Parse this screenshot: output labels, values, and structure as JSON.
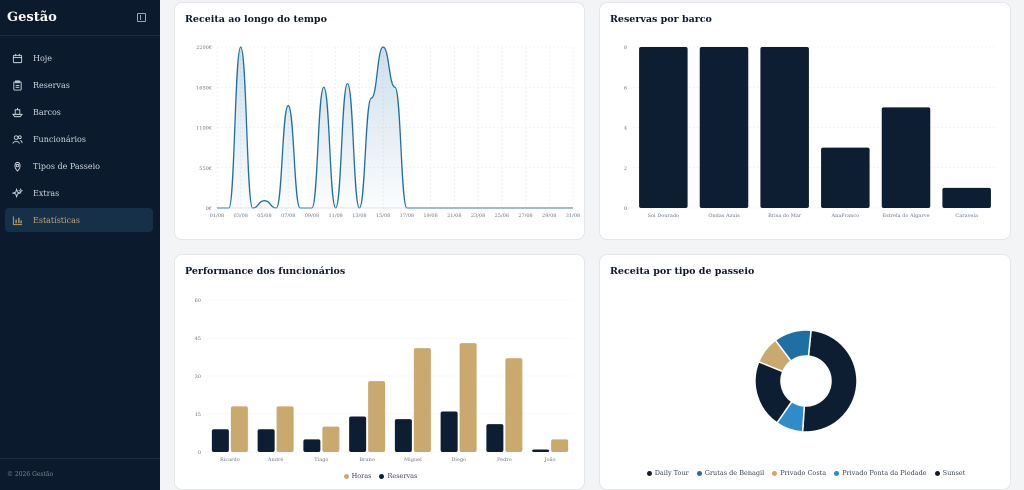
{
  "sidebar": {
    "title": "Gestão",
    "items": [
      {
        "label": "Hoje",
        "icon": "calendar-icon",
        "active": false
      },
      {
        "label": "Reservas",
        "icon": "clipboard-icon",
        "active": false
      },
      {
        "label": "Barcos",
        "icon": "boat-icon",
        "active": false
      },
      {
        "label": "Funcionários",
        "icon": "users-icon",
        "active": false
      },
      {
        "label": "Tipos de Passeio",
        "icon": "map-pin-icon",
        "active": false
      },
      {
        "label": "Extras",
        "icon": "sparkles-icon",
        "active": false
      },
      {
        "label": "Estatísticas",
        "icon": "bar-chart-icon",
        "active": true
      }
    ],
    "footer": "© 2026 Gestão"
  },
  "colors": {
    "navy": "#0e1e32",
    "gold": "#c9a96e",
    "blue": "#1f6fa5",
    "light_blue": "#2f8bc9",
    "tan": "#c9a96e"
  },
  "chart_data": [
    {
      "type": "area",
      "title": "Receita ao longo do tempo",
      "x": [
        "01/08",
        "02/08",
        "03/08",
        "04/08",
        "05/08",
        "06/08",
        "07/08",
        "08/08",
        "09/08",
        "10/08",
        "11/08",
        "12/08",
        "13/08",
        "14/08",
        "15/08",
        "16/08",
        "17/08",
        "18/08",
        "19/08",
        "20/08",
        "21/08",
        "22/08",
        "23/08",
        "24/08",
        "25/08",
        "26/08",
        "27/08",
        "28/08",
        "29/08",
        "30/08",
        "31/08"
      ],
      "values": [
        0,
        0,
        2200,
        0,
        100,
        0,
        1400,
        0,
        0,
        1650,
        0,
        1700,
        0,
        1500,
        2200,
        1650,
        0,
        0,
        0,
        0,
        0,
        0,
        0,
        0,
        0,
        0,
        0,
        0,
        0,
        0,
        0
      ],
      "xticks": [
        "01/08",
        "03/08",
        "05/08",
        "07/08",
        "09/08",
        "11/08",
        "13/08",
        "15/08",
        "17/08",
        "19/08",
        "21/08",
        "23/08",
        "25/08",
        "27/08",
        "29/08",
        "31/08"
      ],
      "yticks": [
        "0€",
        "550€",
        "1100€",
        "1650€",
        "2200€"
      ],
      "ylim": [
        0,
        2200
      ]
    },
    {
      "type": "bar",
      "title": "Reservas por barco",
      "categories": [
        "Sol Dourado",
        "Ondas Azuis",
        "Brisa do Mar",
        "AnaFranco",
        "Estrela do Algarve",
        "Caravela"
      ],
      "values": [
        8,
        8,
        8,
        3,
        5,
        1
      ],
      "yticks": [
        "0",
        "2",
        "4",
        "6",
        "8"
      ],
      "ylim": [
        0,
        8
      ]
    },
    {
      "type": "bar",
      "title": "Performance dos funcionários",
      "categories": [
        "Ricardo",
        "André",
        "Tiago",
        "Bruno",
        "Miguel",
        "Diogo",
        "Pedro",
        "João"
      ],
      "series": [
        {
          "name": "Horas",
          "values": [
            18,
            18,
            10,
            28,
            41,
            43,
            37,
            5
          ]
        },
        {
          "name": "Reservas",
          "values": [
            9,
            9,
            5,
            14,
            13,
            16,
            11,
            1
          ]
        }
      ],
      "legend_order": [
        "Horas",
        "Reservas"
      ],
      "yticks": [
        "0",
        "15",
        "30",
        "45",
        "60"
      ],
      "ylim": [
        0,
        60
      ]
    },
    {
      "type": "pie",
      "title": "Receita por tipo de passeio",
      "labels": [
        "Daily Tour",
        "Grutas de Benagil",
        "Privado Costa",
        "Privado Ponta da Piedade",
        "Sunset"
      ],
      "values": [
        46,
        11,
        8,
        8,
        20
      ],
      "colors_order": [
        "#0e1e32",
        "#1f6fa5",
        "#c9a96e",
        "#2f8bc9",
        "#0e1e32"
      ],
      "legend": "bottom"
    }
  ]
}
